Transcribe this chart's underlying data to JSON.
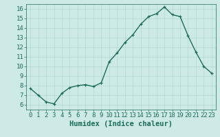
{
  "x": [
    0,
    1,
    2,
    3,
    4,
    5,
    6,
    7,
    8,
    9,
    10,
    11,
    12,
    13,
    14,
    15,
    16,
    17,
    18,
    19,
    20,
    21,
    22,
    23
  ],
  "y": [
    7.7,
    7.0,
    6.3,
    6.1,
    7.2,
    7.8,
    8.0,
    8.1,
    7.9,
    8.3,
    10.5,
    11.4,
    12.5,
    13.3,
    14.4,
    15.2,
    15.5,
    16.2,
    15.4,
    15.2,
    13.2,
    11.5,
    10.0,
    9.3
  ],
  "xlabel": "Humidex (Indice chaleur)",
  "xlim": [
    -0.5,
    23.5
  ],
  "ylim": [
    5.5,
    16.5
  ],
  "yticks": [
    6,
    7,
    8,
    9,
    10,
    11,
    12,
    13,
    14,
    15,
    16
  ],
  "xticks": [
    0,
    1,
    2,
    3,
    4,
    5,
    6,
    7,
    8,
    9,
    10,
    11,
    12,
    13,
    14,
    15,
    16,
    17,
    18,
    19,
    20,
    21,
    22,
    23
  ],
  "bg_color": "#ceeae6",
  "grid_color": "#b0d8d4",
  "line_color": "#1a6b5a",
  "xlabel_fontsize": 7.5,
  "tick_fontsize": 6.5,
  "line_width": 1.0,
  "marker_size": 3.5
}
